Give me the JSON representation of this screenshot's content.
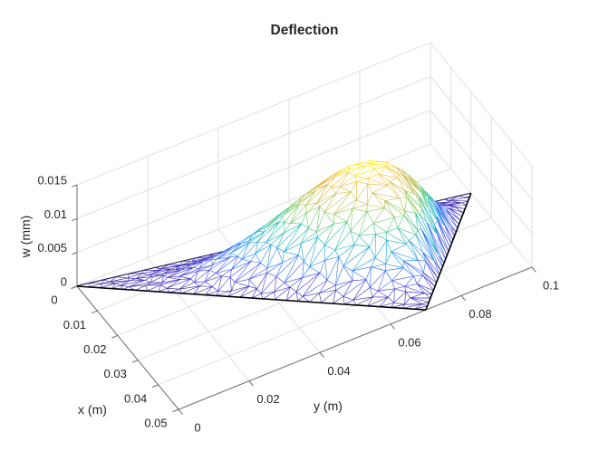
{
  "chart_data": {
    "type": "surface",
    "title": "Deflection",
    "xlabel": "x (m)",
    "ylabel": "y (m)",
    "zlabel": "w (mm)",
    "xlim": [
      0,
      0.05
    ],
    "ylim": [
      0,
      0.1
    ],
    "zlim": [
      0,
      0.015
    ],
    "xticks": [
      0,
      0.01,
      0.02,
      0.03,
      0.04,
      0.05
    ],
    "yticks": [
      0,
      0.02,
      0.04,
      0.06,
      0.08,
      0.1
    ],
    "zticks": [
      0,
      0.005,
      0.01,
      0.015
    ],
    "xtick_labels": [
      "0",
      "0.01",
      "0.02",
      "0.03",
      "0.04",
      "0.05"
    ],
    "ytick_labels": [
      "0",
      "0.02",
      "0.04",
      "0.06",
      "0.08",
      "0.1"
    ],
    "ztick_labels": [
      "0",
      "0.005",
      "0.01",
      "0.015"
    ],
    "grid": true,
    "legend": false,
    "view": "matlab-default-3d (az -37.5, el 30)",
    "colormap": "parula",
    "colormap_stops": [
      {
        "t": 0.0,
        "color": "#3e26a8"
      },
      {
        "t": 0.13,
        "color": "#4852f4"
      },
      {
        "t": 0.25,
        "color": "#2e87f7"
      },
      {
        "t": 0.38,
        "color": "#12b1d6"
      },
      {
        "t": 0.5,
        "color": "#37c897"
      },
      {
        "t": 0.63,
        "color": "#81cc59"
      },
      {
        "t": 0.75,
        "color": "#c9bc4e"
      },
      {
        "t": 0.88,
        "color": "#fbbc41"
      },
      {
        "t": 1.0,
        "color": "#f9fb14"
      }
    ],
    "surface": {
      "description": "FEM triangular-mesh deflection surface of a triangular plate, edges colored by deflection, white faces, black plate boundary",
      "domain_triangle_xy_m": [
        [
          0,
          0
        ],
        [
          0.05,
          0.07
        ],
        [
          0.02,
          0.1
        ]
      ],
      "w_max_mm": 0.0147,
      "peak_xy_m": [
        0.028,
        0.066
      ],
      "peak_shape_exponents": [
        1.08,
        2.12,
        1.8
      ],
      "mesh_divisions": 30,
      "boundary_color": "#000000",
      "face_color": "#ffffff"
    }
  },
  "colors": {
    "background": "#ffffff",
    "text": "#262626",
    "axis_line": "#6e6e6e",
    "grid_line": "#dcdcdc"
  }
}
